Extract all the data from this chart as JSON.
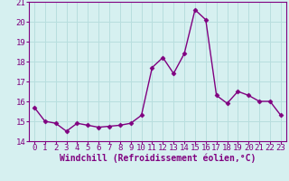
{
  "x": [
    0,
    1,
    2,
    3,
    4,
    5,
    6,
    7,
    8,
    9,
    10,
    11,
    12,
    13,
    14,
    15,
    16,
    17,
    18,
    19,
    20,
    21,
    22,
    23
  ],
  "y": [
    15.7,
    15.0,
    14.9,
    14.5,
    14.9,
    14.8,
    14.7,
    14.75,
    14.8,
    14.9,
    15.3,
    17.7,
    18.2,
    17.4,
    18.4,
    20.6,
    20.1,
    16.3,
    15.9,
    16.5,
    16.3,
    16.0,
    16.0,
    15.3
  ],
  "line_color": "#800080",
  "marker": "D",
  "marker_size": 2.5,
  "xlabel": "Windchill (Refroidissement éolien,°C)",
  "xlabel_color": "#800080",
  "ylim": [
    14,
    21
  ],
  "xlim": [
    -0.5,
    23.5
  ],
  "yticks": [
    14,
    15,
    16,
    17,
    18,
    19,
    20,
    21
  ],
  "xticks": [
    0,
    1,
    2,
    3,
    4,
    5,
    6,
    7,
    8,
    9,
    10,
    11,
    12,
    13,
    14,
    15,
    16,
    17,
    18,
    19,
    20,
    21,
    22,
    23
  ],
  "background_color": "#d6f0f0",
  "grid_color": "#b8dede",
  "tick_color": "#800080",
  "tick_fontsize": 6.5,
  "xlabel_fontsize": 7,
  "line_width": 1.0
}
